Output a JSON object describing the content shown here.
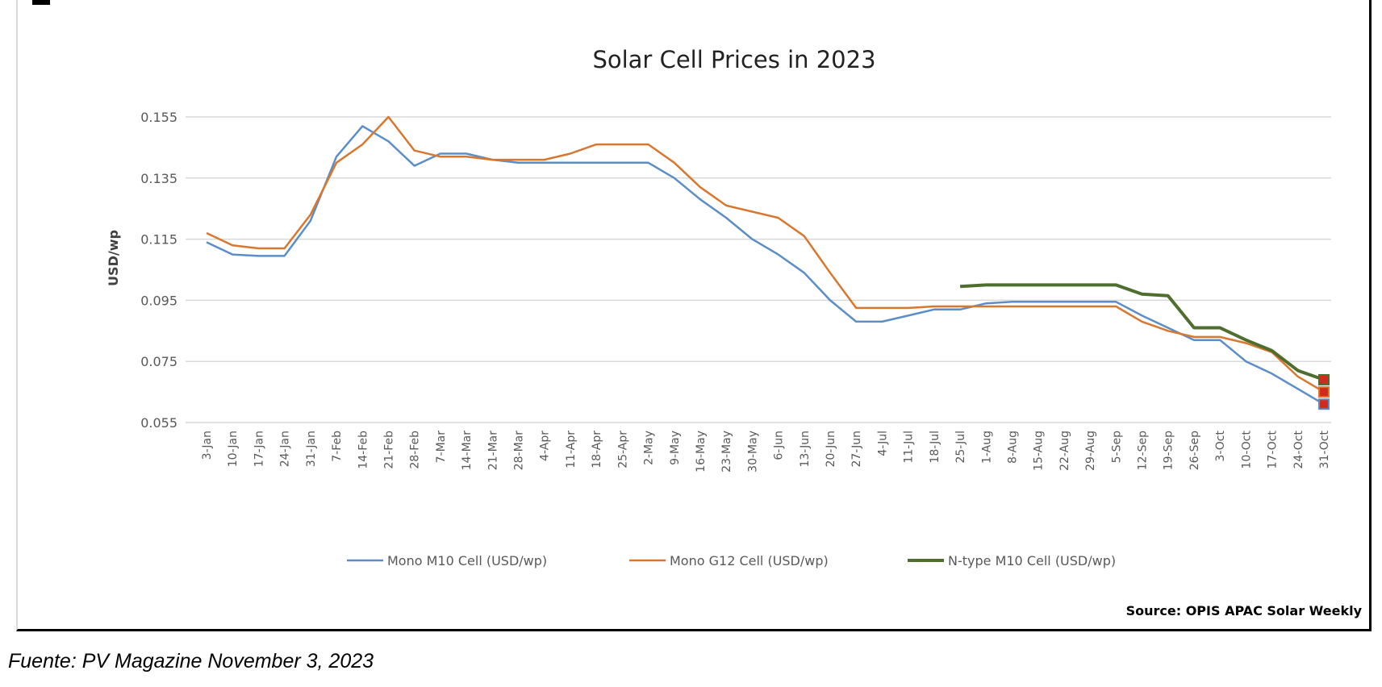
{
  "chart_data": {
    "type": "line",
    "title": "Solar Cell Prices in 2023",
    "xlabel": "",
    "ylabel": "USD/wp",
    "ylim": [
      0.055,
      0.155
    ],
    "yticks": [
      "0.155",
      "0.135",
      "0.115",
      "0.095",
      "0.075",
      "0.055"
    ],
    "grid": true,
    "legend": "bottom",
    "categories": [
      "3-Jan",
      "10-Jan",
      "17-Jan",
      "24-Jan",
      "31-Jan",
      "7-Feb",
      "14-Feb",
      "21-Feb",
      "28-Feb",
      "7-Mar",
      "14-Mar",
      "21-Mar",
      "28-Mar",
      "4-Apr",
      "11-Apr",
      "18-Apr",
      "25-Apr",
      "2-May",
      "9-May",
      "16-May",
      "23-May",
      "30-May",
      "6-Jun",
      "13-Jun",
      "20-Jun",
      "27-Jun",
      "4-Jul",
      "11-Jul",
      "18-Jul",
      "25-Jul",
      "1-Aug",
      "8-Aug",
      "15-Aug",
      "22-Aug",
      "29-Aug",
      "5-Sep",
      "12-Sep",
      "19-Sep",
      "26-Sep",
      "3-Oct",
      "10-Oct",
      "17-Oct",
      "24-Oct",
      "31-Oct"
    ],
    "series": [
      {
        "name": "Mono M10 Cell (USD/wp)",
        "color": "#5b8ec9",
        "values": [
          0.114,
          0.11,
          0.1095,
          0.1095,
          0.121,
          0.142,
          0.152,
          0.147,
          0.139,
          0.143,
          0.143,
          0.141,
          0.14,
          0.14,
          0.14,
          0.14,
          0.14,
          0.14,
          0.135,
          0.128,
          0.122,
          0.115,
          0.11,
          0.104,
          0.095,
          0.088,
          0.088,
          0.09,
          0.092,
          0.092,
          0.094,
          0.0945,
          0.0945,
          0.0945,
          0.0945,
          0.0945,
          0.09,
          0.086,
          0.082,
          0.082,
          0.075,
          0.071,
          0.066,
          0.061
        ]
      },
      {
        "name": "Mono G12 Cell (USD/wp)",
        "color": "#d9772f",
        "values": [
          0.117,
          0.113,
          0.112,
          0.112,
          0.123,
          0.14,
          0.146,
          0.155,
          0.144,
          0.142,
          0.142,
          0.141,
          0.141,
          0.141,
          0.143,
          0.146,
          0.146,
          0.146,
          0.14,
          0.132,
          0.126,
          0.124,
          0.122,
          0.116,
          0.104,
          0.0925,
          0.0925,
          0.0925,
          0.093,
          0.093,
          0.093,
          0.093,
          0.093,
          0.093,
          0.093,
          0.093,
          0.088,
          0.085,
          0.083,
          0.083,
          0.081,
          0.078,
          0.07,
          0.065
        ]
      },
      {
        "name": "N-type M10 Cell (USD/wp)",
        "color": "#4e6e2e",
        "values": [
          null,
          null,
          null,
          null,
          null,
          null,
          null,
          null,
          null,
          null,
          null,
          null,
          null,
          null,
          null,
          null,
          null,
          null,
          null,
          null,
          null,
          null,
          null,
          null,
          null,
          null,
          null,
          null,
          null,
          0.0995,
          0.1,
          0.1,
          0.1,
          0.1,
          0.1,
          0.1,
          0.097,
          0.0965,
          0.086,
          0.086,
          0.082,
          0.0785,
          0.072,
          0.069
        ]
      }
    ],
    "end_marker_color": "#d42a1e",
    "source": "Source: OPIS APAC Solar Weekly"
  },
  "caption": "Fuente: PV Magazine November 3, 2023"
}
